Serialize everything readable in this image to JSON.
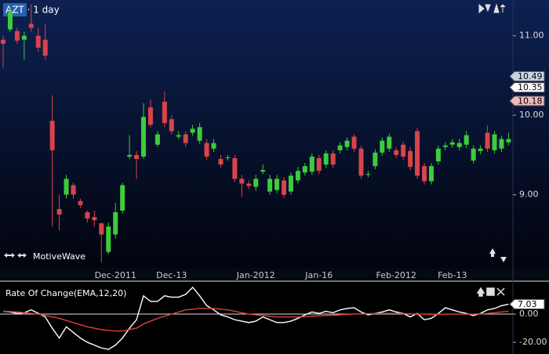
{
  "chart_data": [
    {
      "type": "candlestick",
      "title": "AZT · 1 day",
      "watermark": "MotiveWave",
      "categories": [
        null,
        null,
        null,
        null,
        null,
        null,
        null,
        null,
        null,
        null,
        null,
        null,
        null,
        null,
        null,
        null,
        "Dec-2011",
        null,
        null,
        null,
        null,
        null,
        null,
        null,
        "Dec-13",
        null,
        null,
        null,
        null,
        null,
        null,
        null,
        null,
        null,
        null,
        null,
        "Jan-2012",
        null,
        null,
        null,
        null,
        null,
        null,
        null,
        null,
        "Jan-16",
        null,
        null,
        null,
        null,
        null,
        null,
        null,
        null,
        null,
        null,
        "Feb-2012",
        null,
        null,
        null,
        null,
        null,
        null,
        null,
        "Feb-13",
        null,
        null,
        null,
        null,
        null,
        null,
        null,
        null
      ],
      "open": [
        10.95,
        11.08,
        11.06,
        10.95,
        11.15,
        11.0,
        10.95,
        9.93,
        8.82,
        9.0,
        9.12,
        8.92,
        8.78,
        8.72,
        8.64,
        8.28,
        8.5,
        8.8,
        9.48,
        9.5,
        9.48,
        10.1,
        9.63,
        10.17,
        9.95,
        9.73,
        9.76,
        9.78,
        9.68,
        9.65,
        9.58,
        9.45,
        9.46,
        9.46,
        9.2,
        9.14,
        9.1,
        9.29,
        9.04,
        9.06,
        9.18,
        9.04,
        9.18,
        9.28,
        9.29,
        9.46,
        9.38,
        9.52,
        9.56,
        9.6,
        9.73,
        9.58,
        9.25,
        9.36,
        9.53,
        9.58,
        9.56,
        9.63,
        9.55,
        9.8,
        9.36,
        9.17,
        9.42,
        9.6,
        9.63,
        9.6,
        9.63,
        9.43,
        9.55,
        9.78,
        9.56,
        9.58,
        9.66
      ],
      "high": [
        11.0,
        11.35,
        11.1,
        11.05,
        11.4,
        11.1,
        11.15,
        10.25,
        9.0,
        9.25,
        9.15,
        8.95,
        8.8,
        8.8,
        8.65,
        8.65,
        8.9,
        9.15,
        9.75,
        9.55,
        10.15,
        10.2,
        9.8,
        10.3,
        10.0,
        9.8,
        9.8,
        9.88,
        9.9,
        9.7,
        9.7,
        9.5,
        9.5,
        9.5,
        9.25,
        9.18,
        9.25,
        9.38,
        9.25,
        9.25,
        9.22,
        9.28,
        9.35,
        9.4,
        9.52,
        9.5,
        9.56,
        9.56,
        9.66,
        9.72,
        9.76,
        9.62,
        9.3,
        9.57,
        9.72,
        9.77,
        9.6,
        9.67,
        9.6,
        9.84,
        9.4,
        9.4,
        9.62,
        9.66,
        9.7,
        9.7,
        9.8,
        9.62,
        9.62,
        9.87,
        9.8,
        9.74,
        9.78
      ],
      "low": [
        10.6,
        11.05,
        10.9,
        10.7,
        11.05,
        10.8,
        10.7,
        8.6,
        8.55,
        8.95,
        8.95,
        8.83,
        8.65,
        8.6,
        8.15,
        8.25,
        8.45,
        8.76,
        9.45,
        9.2,
        9.45,
        9.85,
        9.6,
        9.85,
        9.76,
        9.7,
        9.6,
        9.74,
        9.64,
        9.44,
        9.54,
        9.34,
        9.43,
        9.16,
        8.97,
        9.07,
        9.05,
        9.26,
        9.0,
        9.02,
        8.96,
        9.0,
        9.14,
        9.24,
        9.25,
        9.26,
        9.34,
        9.34,
        9.52,
        9.56,
        9.54,
        9.2,
        9.22,
        9.32,
        9.49,
        9.54,
        9.46,
        9.44,
        9.31,
        9.2,
        9.13,
        9.13,
        9.38,
        9.56,
        9.59,
        9.56,
        9.59,
        9.39,
        9.51,
        9.54,
        9.52,
        9.54,
        9.62
      ],
      "close": [
        10.9,
        11.3,
        10.94,
        11.0,
        11.1,
        10.85,
        10.75,
        9.56,
        8.75,
        9.2,
        9.0,
        8.87,
        8.7,
        8.68,
        8.5,
        8.6,
        8.78,
        9.12,
        9.5,
        9.45,
        9.98,
        9.88,
        9.76,
        9.9,
        9.8,
        9.75,
        9.65,
        9.83,
        9.85,
        9.48,
        9.65,
        9.38,
        9.47,
        9.2,
        9.14,
        9.11,
        9.2,
        9.31,
        9.2,
        9.2,
        9.0,
        9.24,
        9.3,
        9.36,
        9.48,
        9.3,
        9.52,
        9.38,
        9.62,
        9.68,
        9.58,
        9.24,
        9.26,
        9.53,
        9.68,
        9.73,
        9.5,
        9.48,
        9.35,
        9.24,
        9.17,
        9.36,
        9.58,
        9.62,
        9.66,
        9.65,
        9.75,
        9.58,
        9.58,
        9.58,
        9.76,
        9.7,
        9.7
      ],
      "up_color": "#3ccc3c",
      "down_color": "#d9434b",
      "ylim": [
        8.08,
        11.45
      ],
      "yticks": [
        {
          "value": 9,
          "label": "9.00"
        },
        {
          "value": 10,
          "label": "10.00"
        },
        {
          "value": 11,
          "label": "11.00"
        }
      ],
      "flags": [
        {
          "value": 10.49,
          "label": "10.49",
          "color": "#c9d3e6"
        },
        {
          "value": 10.35,
          "label": "10.35",
          "color": "#ffffff"
        },
        {
          "value": 10.18,
          "label": "10.18",
          "color": "#f2b8bd"
        }
      ]
    },
    {
      "type": "line",
      "title": "Rate Of Change(EMA,12,20)",
      "series": [
        {
          "color": "#ffffff",
          "values": [
            2,
            1.5,
            0.5,
            1,
            3,
            0.5,
            -2,
            -10,
            -17,
            -9,
            -13,
            -17,
            -20,
            -22,
            -24,
            -25,
            -22,
            -17,
            -10,
            -4,
            13,
            9,
            9,
            13,
            12,
            12,
            14,
            19,
            13,
            6,
            3,
            -0.5,
            -2,
            -4,
            -5,
            -6,
            -5,
            -2,
            -4,
            -6,
            -6,
            -5,
            -3,
            -0.5,
            1.5,
            0.5,
            2,
            1,
            3,
            4,
            4.5,
            1.5,
            -0.5,
            0.5,
            1.5,
            3,
            1.5,
            0.5,
            -2,
            0.5,
            -4,
            -3,
            0.5,
            4.5,
            3,
            1.5,
            0.5,
            -1,
            0.5,
            3,
            4,
            6,
            7.03
          ]
        },
        {
          "color": "#e0403a",
          "values": [
            2,
            1.8,
            1.5,
            1,
            0.5,
            0,
            -1,
            -2,
            -3,
            -4.5,
            -6,
            -7.5,
            -9,
            -10,
            -11,
            -11.5,
            -12,
            -12,
            -11,
            -10,
            -7,
            -5,
            -3,
            -1.5,
            0,
            1.5,
            3,
            3.5,
            4,
            4,
            4,
            3.5,
            3,
            2,
            1,
            0,
            -0.5,
            -1,
            -1.5,
            -2,
            -2,
            -2,
            -2,
            -1.8,
            -1.5,
            -1.2,
            -1,
            -0.8,
            -0.5,
            -0.2,
            0,
            0.2,
            0.3,
            0.4,
            0.5,
            0.5,
            0.5,
            0.4,
            0.2,
            0,
            0,
            -0.2,
            -0.1,
            0,
            0,
            0,
            0,
            0,
            0.2,
            0.5,
            1,
            1.5,
            2
          ]
        }
      ],
      "ylim": [
        -28.3,
        21.7
      ],
      "yticks": [
        {
          "value": 0,
          "label": "0.00"
        },
        {
          "value": -20,
          "label": "-20.00"
        }
      ],
      "zero_line": true,
      "flags": [
        {
          "value": 7.03,
          "label": "7.03",
          "color": "#ffffff"
        }
      ]
    }
  ]
}
